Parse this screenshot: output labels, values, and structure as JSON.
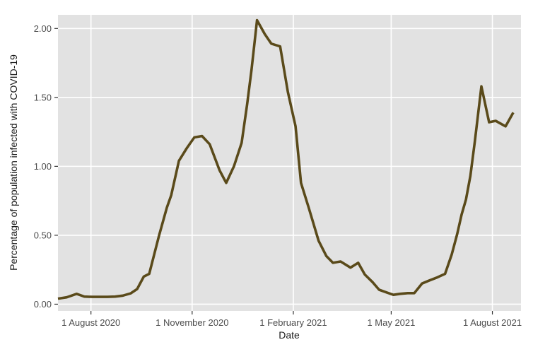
{
  "chart_data": {
    "type": "line",
    "title": "",
    "xlabel": "Date",
    "ylabel": "Percentage of population infected with COVID-19",
    "x_ticks": [
      {
        "date": "2020-08-01",
        "label": "1 August 2020"
      },
      {
        "date": "2020-11-01",
        "label": "1 November 2020"
      },
      {
        "date": "2021-02-01",
        "label": "1 February 2021"
      },
      {
        "date": "2021-05-01",
        "label": "1 May 2021"
      },
      {
        "date": "2021-08-01",
        "label": "1 August 2021"
      }
    ],
    "y_ticks": [
      {
        "value": 0.0,
        "label": "0.00"
      },
      {
        "value": 0.5,
        "label": "0.50"
      },
      {
        "value": 1.0,
        "label": "1.00"
      },
      {
        "value": 1.5,
        "label": "1.50"
      },
      {
        "value": 2.0,
        "label": "2.00"
      }
    ],
    "x_domain": [
      "2020-07-02",
      "2021-08-27"
    ],
    "y_domain": [
      -0.049,
      2.099
    ],
    "grid": true,
    "legend": false,
    "colors": {
      "line": "#5a4a1a",
      "panel_bg": "#e2e2e2",
      "grid": "#ffffff",
      "tick_mark": "#333333",
      "tick_label": "#4d4d4d",
      "axis_title": "#1a1a1a"
    },
    "series": [
      {
        "points": [
          [
            "2020-07-02",
            0.04
          ],
          [
            "2020-07-10",
            0.05
          ],
          [
            "2020-07-19",
            0.075
          ],
          [
            "2020-07-26",
            0.055
          ],
          [
            "2020-08-02",
            0.053
          ],
          [
            "2020-08-09",
            0.053
          ],
          [
            "2020-08-16",
            0.053
          ],
          [
            "2020-08-23",
            0.055
          ],
          [
            "2020-08-30",
            0.062
          ],
          [
            "2020-09-06",
            0.078
          ],
          [
            "2020-09-12",
            0.11
          ],
          [
            "2020-09-18",
            0.2
          ],
          [
            "2020-09-23",
            0.22
          ],
          [
            "2020-10-02",
            0.5
          ],
          [
            "2020-10-09",
            0.7
          ],
          [
            "2020-10-13",
            0.79
          ],
          [
            "2020-10-20",
            1.04
          ],
          [
            "2020-10-27",
            1.13
          ],
          [
            "2020-11-03",
            1.21
          ],
          [
            "2020-11-10",
            1.22
          ],
          [
            "2020-11-17",
            1.16
          ],
          [
            "2020-11-26",
            0.97
          ],
          [
            "2020-12-02",
            0.88
          ],
          [
            "2020-12-09",
            1.0
          ],
          [
            "2020-12-16",
            1.17
          ],
          [
            "2020-12-21",
            1.45
          ],
          [
            "2020-12-25",
            1.7
          ],
          [
            "2020-12-30",
            2.06
          ],
          [
            "2021-01-06",
            1.96
          ],
          [
            "2021-01-12",
            1.89
          ],
          [
            "2021-01-20",
            1.87
          ],
          [
            "2021-01-27",
            1.54
          ],
          [
            "2021-02-03",
            1.29
          ],
          [
            "2021-02-08",
            0.88
          ],
          [
            "2021-02-15",
            0.7
          ],
          [
            "2021-02-24",
            0.46
          ],
          [
            "2021-03-03",
            0.35
          ],
          [
            "2021-03-09",
            0.3
          ],
          [
            "2021-03-16",
            0.31
          ],
          [
            "2021-03-25",
            0.265
          ],
          [
            "2021-04-01",
            0.3
          ],
          [
            "2021-04-07",
            0.215
          ],
          [
            "2021-04-14",
            0.16
          ],
          [
            "2021-04-20",
            0.105
          ],
          [
            "2021-04-27",
            0.085
          ],
          [
            "2021-05-03",
            0.068
          ],
          [
            "2021-05-09",
            0.075
          ],
          [
            "2021-05-16",
            0.08
          ],
          [
            "2021-05-22",
            0.08
          ],
          [
            "2021-05-29",
            0.15
          ],
          [
            "2021-06-04",
            0.17
          ],
          [
            "2021-06-12",
            0.195
          ],
          [
            "2021-06-19",
            0.22
          ],
          [
            "2021-06-25",
            0.36
          ],
          [
            "2021-06-30",
            0.51
          ],
          [
            "2021-07-04",
            0.65
          ],
          [
            "2021-07-08",
            0.76
          ],
          [
            "2021-07-12",
            0.93
          ],
          [
            "2021-07-16",
            1.18
          ],
          [
            "2021-07-22",
            1.58
          ],
          [
            "2021-07-29",
            1.32
          ],
          [
            "2021-08-04",
            1.33
          ],
          [
            "2021-08-13",
            1.29
          ],
          [
            "2021-08-20",
            1.39
          ]
        ]
      }
    ]
  }
}
